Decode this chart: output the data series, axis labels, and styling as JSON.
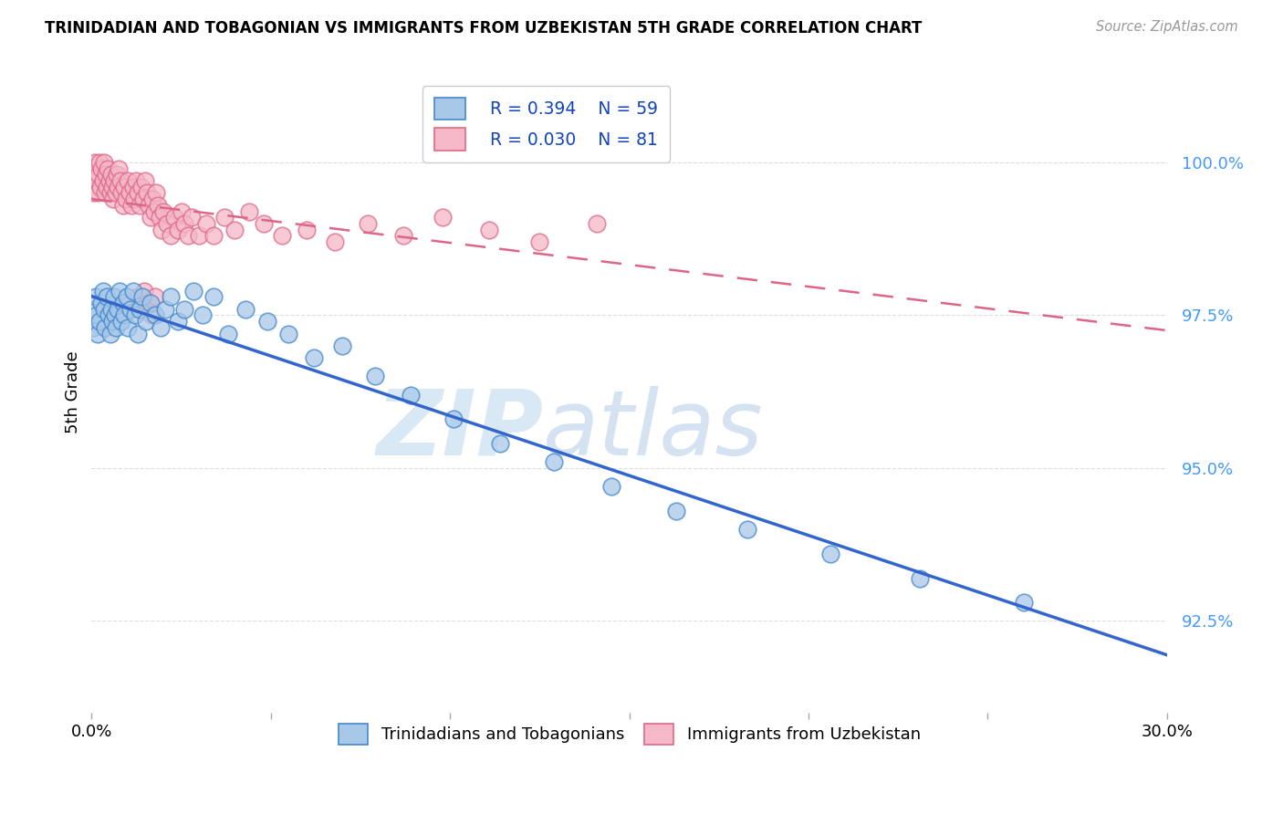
{
  "title": "TRINIDADIAN AND TOBAGONIAN VS IMMIGRANTS FROM UZBEKISTAN 5TH GRADE CORRELATION CHART",
  "source": "Source: ZipAtlas.com",
  "ylabel": "5th Grade",
  "xlim": [
    0.0,
    30.0
  ],
  "ylim": [
    91.0,
    101.5
  ],
  "yticks": [
    92.5,
    95.0,
    97.5,
    100.0
  ],
  "ytick_labels": [
    "92.5%",
    "95.0%",
    "97.5%",
    "100.0%"
  ],
  "xtick_positions": [
    0.0,
    5.0,
    10.0,
    15.0,
    20.0,
    25.0,
    30.0
  ],
  "xtick_labels": [
    "0.0%",
    "",
    "",
    "",
    "",
    "",
    "30.0%"
  ],
  "legend_labels": [
    "Trinidadians and Tobagonians",
    "Immigrants from Uzbekistan"
  ],
  "R_blue": 0.394,
  "N_blue": 59,
  "R_pink": 0.03,
  "N_pink": 81,
  "blue_fill": "#a8c8e8",
  "blue_edge": "#4488cc",
  "pink_fill": "#f4b8c8",
  "pink_edge": "#e06888",
  "blue_line_color": "#3366cc",
  "pink_line_color": "#dd6688",
  "watermark_color": "#ddeeff",
  "title_color": "#000000",
  "source_color": "#999999",
  "ytick_color": "#4499ff",
  "grid_color": "#dddddd",
  "blue_x": [
    0.05,
    0.08,
    0.12,
    0.15,
    0.18,
    0.22,
    0.28,
    0.32,
    0.35,
    0.38,
    0.42,
    0.48,
    0.52,
    0.55,
    0.58,
    0.62,
    0.65,
    0.68,
    0.72,
    0.78,
    0.82,
    0.88,
    0.92,
    0.98,
    1.02,
    1.08,
    1.15,
    1.22,
    1.28,
    1.35,
    1.42,
    1.52,
    1.65,
    1.78,
    1.92,
    2.05,
    2.2,
    2.4,
    2.6,
    2.85,
    3.1,
    3.4,
    3.8,
    4.3,
    4.9,
    5.5,
    6.2,
    7.0,
    7.9,
    8.9,
    10.1,
    11.4,
    12.9,
    14.5,
    16.3,
    18.3,
    20.6,
    23.1,
    26.0
  ],
  "blue_y": [
    97.3,
    97.6,
    97.8,
    97.5,
    97.2,
    97.4,
    97.7,
    97.9,
    97.6,
    97.3,
    97.8,
    97.5,
    97.2,
    97.6,
    97.4,
    97.8,
    97.5,
    97.3,
    97.6,
    97.9,
    97.4,
    97.7,
    97.5,
    97.8,
    97.3,
    97.6,
    97.9,
    97.5,
    97.2,
    97.6,
    97.8,
    97.4,
    97.7,
    97.5,
    97.3,
    97.6,
    97.8,
    97.4,
    97.6,
    97.9,
    97.5,
    97.8,
    97.2,
    97.6,
    97.4,
    97.2,
    96.8,
    97.0,
    96.5,
    96.2,
    95.8,
    95.4,
    95.1,
    94.7,
    94.3,
    94.0,
    93.6,
    93.2,
    92.8
  ],
  "pink_x": [
    0.04,
    0.07,
    0.1,
    0.13,
    0.16,
    0.19,
    0.22,
    0.25,
    0.28,
    0.31,
    0.34,
    0.37,
    0.4,
    0.43,
    0.46,
    0.49,
    0.52,
    0.55,
    0.58,
    0.61,
    0.64,
    0.67,
    0.7,
    0.73,
    0.76,
    0.8,
    0.84,
    0.88,
    0.92,
    0.96,
    1.0,
    1.05,
    1.1,
    1.15,
    1.2,
    1.25,
    1.3,
    1.35,
    1.4,
    1.45,
    1.5,
    1.55,
    1.6,
    1.65,
    1.7,
    1.75,
    1.8,
    1.85,
    1.9,
    1.95,
    2.0,
    2.1,
    2.2,
    2.3,
    2.4,
    2.5,
    2.6,
    2.7,
    2.8,
    3.0,
    3.2,
    3.4,
    3.7,
    4.0,
    4.4,
    4.8,
    5.3,
    6.0,
    6.8,
    7.7,
    8.7,
    9.8,
    11.1,
    12.5,
    14.1,
    1.28,
    1.38,
    1.48,
    1.58,
    1.68,
    1.78
  ],
  "pink_y": [
    99.5,
    99.8,
    100.0,
    99.7,
    99.5,
    99.8,
    100.0,
    99.6,
    99.9,
    99.7,
    100.0,
    99.5,
    99.8,
    99.6,
    99.9,
    99.7,
    99.5,
    99.8,
    99.6,
    99.4,
    99.7,
    99.5,
    99.8,
    99.6,
    99.9,
    99.7,
    99.5,
    99.3,
    99.6,
    99.4,
    99.7,
    99.5,
    99.3,
    99.6,
    99.4,
    99.7,
    99.5,
    99.3,
    99.6,
    99.4,
    99.7,
    99.5,
    99.3,
    99.1,
    99.4,
    99.2,
    99.5,
    99.3,
    99.1,
    98.9,
    99.2,
    99.0,
    98.8,
    99.1,
    98.9,
    99.2,
    99.0,
    98.8,
    99.1,
    98.8,
    99.0,
    98.8,
    99.1,
    98.9,
    99.2,
    99.0,
    98.8,
    98.9,
    98.7,
    99.0,
    98.8,
    99.1,
    98.9,
    98.7,
    99.0,
    97.8,
    97.6,
    97.9,
    97.7,
    97.5,
    97.8
  ]
}
